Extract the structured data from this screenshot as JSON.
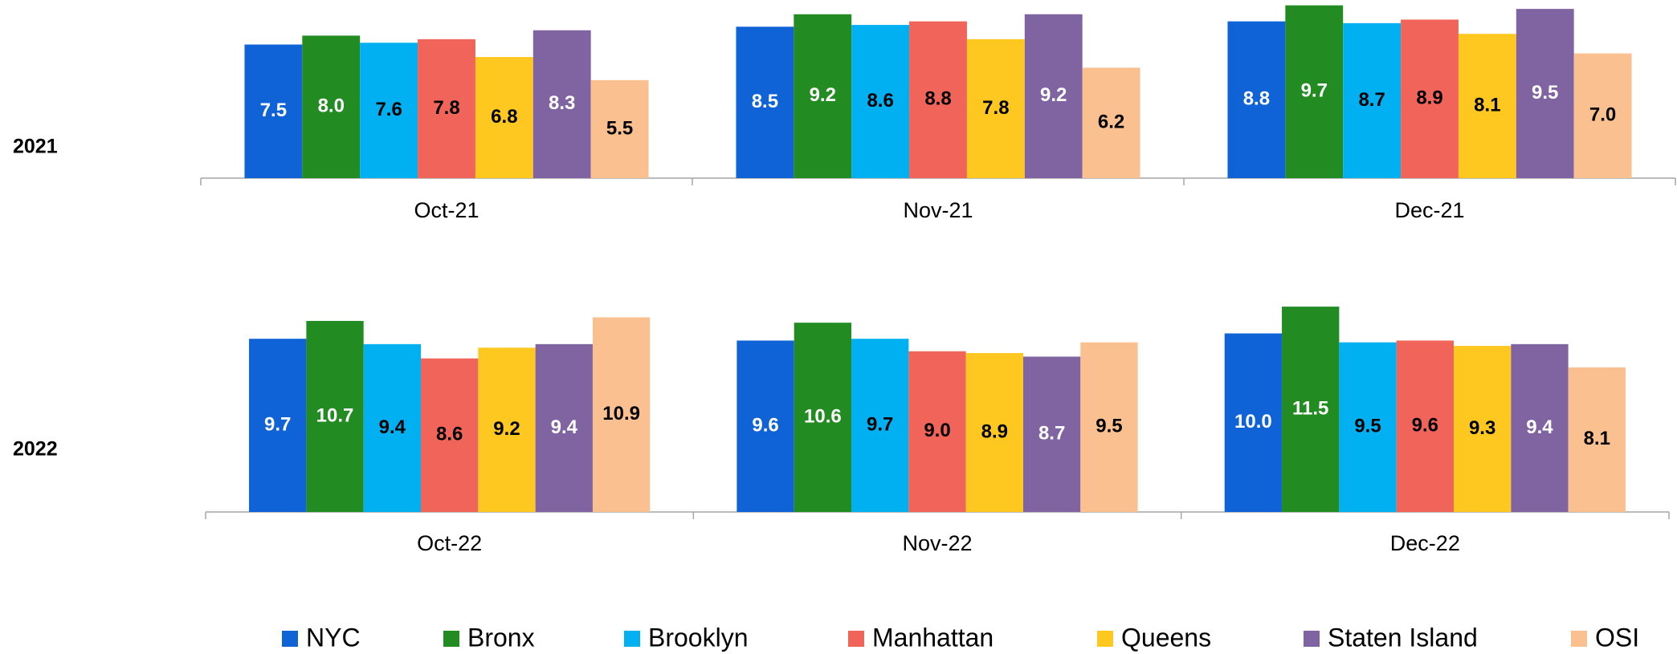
{
  "chart_data": [
    {
      "type": "bar",
      "title": "2021",
      "categories": [
        "Oct-21",
        "Nov-21",
        "Dec-21"
      ],
      "ylim": [
        0,
        10
      ],
      "series": [
        {
          "name": "NYC",
          "color": "#0f63d6",
          "label_color": "#ffffff",
          "values": [
            7.5,
            8.5,
            8.8
          ],
          "value_labels": [
            "7.5",
            "8.5",
            "8.8"
          ]
        },
        {
          "name": "Bronx",
          "color": "#228b22",
          "label_color": "#ffffff",
          "values": [
            8.0,
            9.2,
            9.7
          ],
          "value_labels": [
            "8.0",
            "9.2",
            "9.7"
          ]
        },
        {
          "name": "Brooklyn",
          "color": "#00b0f0",
          "label_color": "#000000",
          "values": [
            7.6,
            8.6,
            8.7
          ],
          "value_labels": [
            "7.6",
            "8.6",
            "8.7"
          ]
        },
        {
          "name": "Manhattan",
          "color": "#f0645a",
          "label_color": "#000000",
          "values": [
            7.8,
            8.8,
            8.9
          ],
          "value_labels": [
            "7.8",
            "8.8",
            "8.9"
          ]
        },
        {
          "name": "Queens",
          "color": "#ffc820",
          "label_color": "#000000",
          "values": [
            6.8,
            7.8,
            8.1
          ],
          "value_labels": [
            "6.8",
            "7.8",
            "8.1"
          ]
        },
        {
          "name": "Staten Island",
          "color": "#8064a2",
          "label_color": "#ffffff",
          "values": [
            8.3,
            9.2,
            9.5
          ],
          "value_labels": [
            "8.3",
            "9.2",
            "9.5"
          ]
        },
        {
          "name": "OSI",
          "color": "#fac090",
          "label_color": "#000000",
          "values": [
            5.5,
            6.2,
            7.0
          ],
          "value_labels": [
            "5.5",
            "6.2",
            "7.0"
          ]
        }
      ]
    },
    {
      "type": "bar",
      "title": "2022",
      "categories": [
        "Oct-22",
        "Nov-22",
        "Dec-22"
      ],
      "ylim": [
        0,
        12
      ],
      "series": [
        {
          "values": [
            9.7,
            9.6,
            10.0
          ],
          "value_labels": [
            "9.7",
            "9.6",
            "10.0"
          ]
        },
        {
          "values": [
            10.7,
            10.6,
            11.5
          ],
          "value_labels": [
            "10.7",
            "10.6",
            "11.5"
          ]
        },
        {
          "values": [
            9.4,
            9.7,
            9.5
          ],
          "value_labels": [
            "9.4",
            "9.7",
            "9.5"
          ]
        },
        {
          "values": [
            8.6,
            9.0,
            9.6
          ],
          "value_labels": [
            "8.6",
            "9.0",
            "9.6"
          ]
        },
        {
          "values": [
            9.2,
            8.9,
            9.3
          ],
          "value_labels": [
            "9.2",
            "8.9",
            "9.3"
          ]
        },
        {
          "values": [
            9.4,
            8.7,
            9.4
          ],
          "value_labels": [
            "9.4",
            "8.7",
            "9.4"
          ]
        },
        {
          "values": [
            10.9,
            9.5,
            8.1
          ],
          "value_labels": [
            "10.9",
            "9.5",
            "8.1"
          ]
        }
      ]
    }
  ]
}
